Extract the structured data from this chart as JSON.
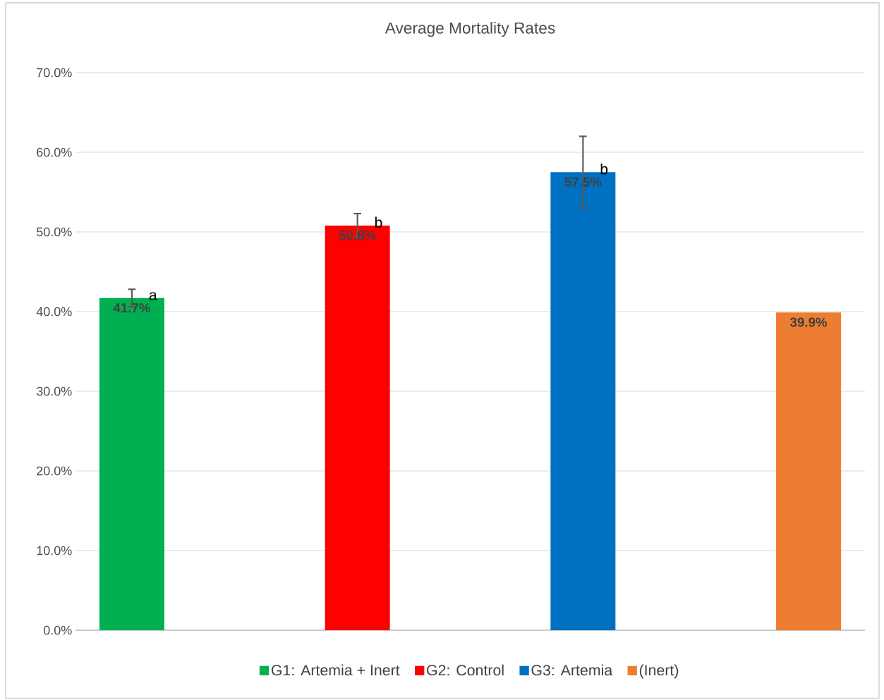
{
  "chart_data": {
    "type": "bar",
    "title": "Average Mortality Rates",
    "categories": [
      null,
      null,
      null,
      null
    ],
    "series": [
      {
        "name": "G1: Artemia + Inert",
        "color": "#00b050",
        "values": [
          41.7,
          null,
          null,
          null
        ],
        "errors": [
          1.1,
          null,
          null,
          null
        ],
        "value_labels": [
          "41.7%",
          null,
          null,
          null
        ]
      },
      {
        "name": "G2: Control",
        "color": "#ff0000",
        "values": [
          null,
          50.8,
          null,
          null
        ],
        "errors": [
          null,
          1.5,
          null,
          null
        ],
        "value_labels": [
          null,
          "50.8%",
          null,
          null
        ]
      },
      {
        "name": "G3: Artemia",
        "color": "#0070c0",
        "values": [
          null,
          null,
          57.5,
          null
        ],
        "errors": [
          null,
          null,
          4.5,
          null
        ],
        "value_labels": [
          null,
          null,
          "57.5%",
          null
        ]
      },
      {
        "name": "(Inert)",
        "color": "#ed7d31",
        "values": [
          null,
          null,
          null,
          39.9
        ],
        "value_labels": [
          null,
          null,
          null,
          "39.9%"
        ]
      }
    ],
    "ylim": [
      0,
      70
    ],
    "yticks": [
      {
        "value": 0,
        "label": "0.0%"
      },
      {
        "value": 10,
        "label": "10.0%"
      },
      {
        "value": 20,
        "label": "20.0%"
      },
      {
        "value": 30,
        "label": "30.0%"
      },
      {
        "value": 40,
        "label": "40.0%"
      },
      {
        "value": 50,
        "label": "50.0%"
      },
      {
        "value": 60,
        "label": "60.0%"
      },
      {
        "value": 70,
        "label": "70.0%"
      }
    ],
    "annotations": [
      "a",
      "b",
      "b"
    ],
    "grid": "y",
    "legend": "bottom"
  }
}
